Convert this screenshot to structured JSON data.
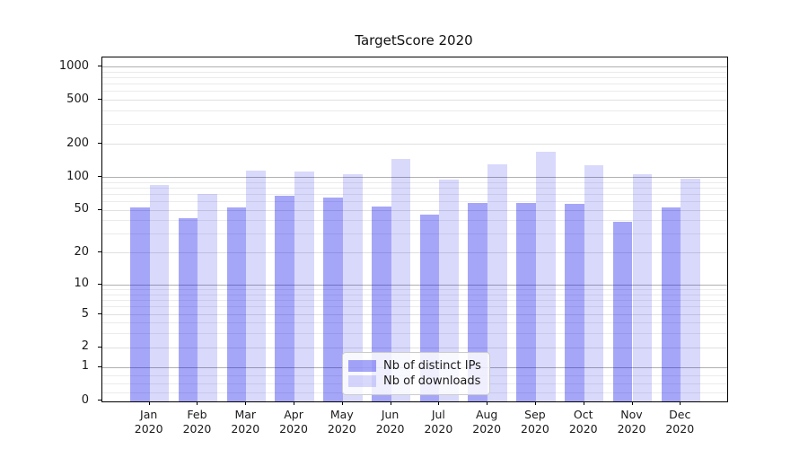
{
  "chart_data": {
    "type": "bar",
    "title": "TargetScore 2020",
    "year": "2020",
    "months": [
      "Jan",
      "Feb",
      "Mar",
      "Apr",
      "May",
      "Jun",
      "Jul",
      "Aug",
      "Sep",
      "Oct",
      "Nov",
      "Dec"
    ],
    "series": [
      {
        "name": "Nb of distinct IPs",
        "key": "ips",
        "color": "#0000eb59",
        "values": [
          53,
          42,
          53,
          67,
          65,
          54,
          45,
          58,
          58,
          57,
          39,
          53
        ]
      },
      {
        "name": "Nb of downloads",
        "key": "downloads",
        "color": "#0000eb26",
        "values": [
          85,
          70,
          115,
          112,
          106,
          145,
          94,
          130,
          170,
          128,
          105,
          97
        ]
      }
    ],
    "y_ticks": [
      0,
      1,
      2,
      5,
      10,
      20,
      50,
      100,
      200,
      500,
      1000
    ],
    "ylim": [
      0,
      1224
    ],
    "scale": "symlog-like",
    "grid": {
      "major_color": "#b0b0b0",
      "labeled_color": "#e0e0e0",
      "minor_color": "#ebebeb"
    },
    "legend_position": "lower-center",
    "xlabel": "",
    "ylabel": ""
  }
}
